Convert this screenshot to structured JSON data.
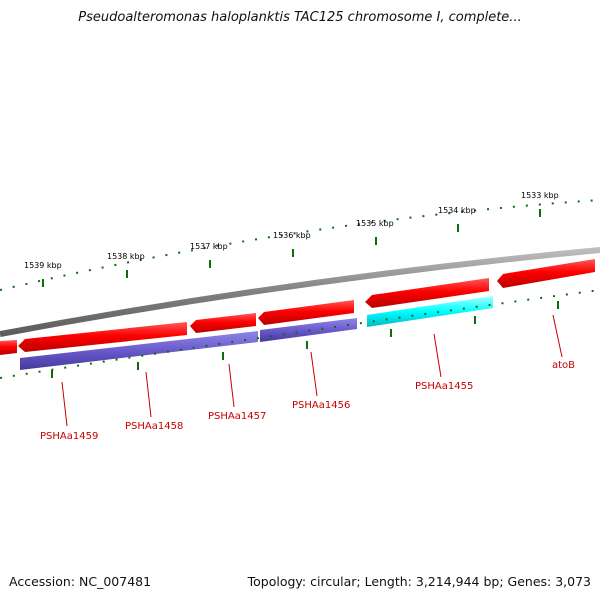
{
  "title": "Pseudoalteromonas haloplanktis TAC125 chromosome I, complete...",
  "footer": {
    "accession": "Accession: NC_007481",
    "summary": "Topology: circular; Length: 3,214,944 bp; Genes: 3,073"
  },
  "colors": {
    "backbone": "#808080",
    "cds_forward": "#ff0000",
    "gene_reverse": "#6a5acd",
    "gene_highlight": "#00ffff",
    "ticks": "#0a6e0a",
    "gene_label": "#c80000"
  },
  "kbp_ticks": [
    "1539 kbp",
    "1538 kbp",
    "1537 kbp",
    "1536 kbp",
    "1535 kbp",
    "1534 kbp",
    "1533 kbp"
  ],
  "gene_labels": [
    "PSHAa1459",
    "PSHAa1458",
    "PSHAa1457",
    "PSHAa1456",
    "PSHAa1455",
    "atoB"
  ]
}
